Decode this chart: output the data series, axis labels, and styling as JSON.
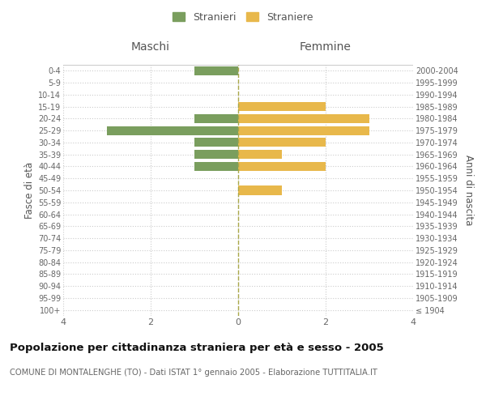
{
  "age_groups": [
    "100+",
    "95-99",
    "90-94",
    "85-89",
    "80-84",
    "75-79",
    "70-74",
    "65-69",
    "60-64",
    "55-59",
    "50-54",
    "45-49",
    "40-44",
    "35-39",
    "30-34",
    "25-29",
    "20-24",
    "15-19",
    "10-14",
    "5-9",
    "0-4"
  ],
  "birth_years": [
    "≤ 1904",
    "1905-1909",
    "1910-1914",
    "1915-1919",
    "1920-1924",
    "1925-1929",
    "1930-1934",
    "1935-1939",
    "1940-1944",
    "1945-1949",
    "1950-1954",
    "1955-1959",
    "1960-1964",
    "1965-1969",
    "1970-1974",
    "1975-1979",
    "1980-1984",
    "1985-1989",
    "1990-1994",
    "1995-1999",
    "2000-2004"
  ],
  "maschi": [
    0,
    0,
    0,
    0,
    0,
    0,
    0,
    0,
    0,
    0,
    0,
    0,
    1,
    1,
    1,
    3,
    1,
    0,
    0,
    0,
    1
  ],
  "femmine": [
    0,
    0,
    0,
    0,
    0,
    0,
    0,
    0,
    0,
    0,
    1,
    0,
    2,
    1,
    2,
    3,
    3,
    2,
    0,
    0,
    0
  ],
  "color_maschi": "#7a9e5e",
  "color_femmine": "#e8b84b",
  "xlim": 4,
  "title": "Popolazione per cittadinanza straniera per età e sesso - 2005",
  "subtitle": "COMUNE DI MONTALENGHE (TO) - Dati ISTAT 1° gennaio 2005 - Elaborazione TUTTITALIA.IT",
  "ylabel_left": "Fasce di età",
  "ylabel_right": "Anni di nascita",
  "legend_maschi": "Stranieri",
  "legend_femmine": "Straniere",
  "header_maschi": "Maschi",
  "header_femmine": "Femmine",
  "bg_color": "#ffffff",
  "grid_color": "#cccccc",
  "bar_height": 0.75
}
